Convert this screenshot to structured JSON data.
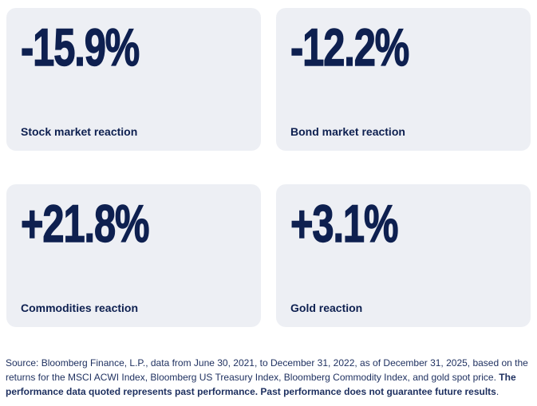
{
  "cards": [
    {
      "value": "-15.9%",
      "label": "Stock market reaction"
    },
    {
      "value": "-12.2%",
      "label": "Bond market reaction"
    },
    {
      "value": "+21.8%",
      "label": "Commodities reaction"
    },
    {
      "value": "+3.1%",
      "label": "Gold reaction"
    }
  ],
  "chart_data": {
    "type": "table",
    "categories": [
      "Stock market reaction",
      "Bond market reaction",
      "Commodities reaction",
      "Gold reaction"
    ],
    "values": [
      -15.9,
      -12.2,
      21.8,
      3.1
    ],
    "value_labels": [
      "-15.9%",
      "-12.2%",
      "+21.8%",
      "+3.1%"
    ],
    "unit": "%",
    "title": ""
  },
  "footer": {
    "line1": "Source: Bloomberg Finance, L.P., data from June 30, 2021, to December 31, 2022, as of December 31, 2025, based on the",
    "line2_regular": "returns for the MSCI ACWI Index, Bloomberg US Treasury Index, Bloomberg Commodity Index, and gold spot price. ",
    "line2_bold": "The",
    "line3_bold": "performance data quoted represents past performance. Past performance does not guarantee future results",
    "line3_end": "."
  },
  "colors": {
    "value_navy": "#0e2050",
    "label_navy": "#0e2050",
    "footer_navy": "#1d2f5f",
    "card_background": "#edeff4",
    "page_background": "#ffffff"
  }
}
